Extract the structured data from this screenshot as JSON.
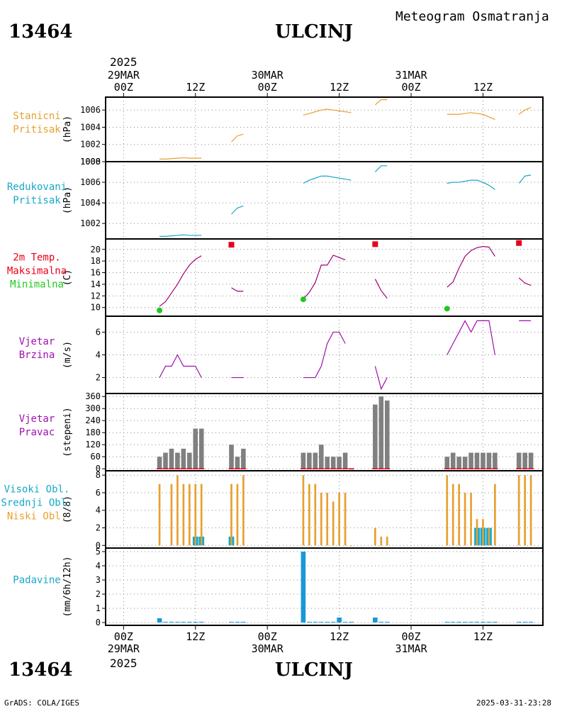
{
  "header": {
    "station_id": "13464",
    "station_name": "ULCINJ",
    "subtitle": "Meteogram Osmatranja"
  },
  "footer": {
    "credit": "GrADS: COLA/IGES",
    "timestamp": "2025-03-31-23:28"
  },
  "time_axis": {
    "top_year": "2025",
    "bottom_year": "2025",
    "ticks": [
      {
        "t": 0,
        "lines": [
          "29MAR",
          "00Z"
        ]
      },
      {
        "t": 12,
        "lines": [
          "12Z"
        ]
      },
      {
        "t": 24,
        "lines": [
          "30MAR",
          "00Z"
        ]
      },
      {
        "t": 36,
        "lines": [
          "12Z"
        ]
      },
      {
        "t": 48,
        "lines": [
          "31MAR",
          "00Z"
        ]
      },
      {
        "t": 60,
        "lines": [
          "12Z"
        ]
      }
    ],
    "range_hours": [
      -3,
      70
    ]
  },
  "colors": {
    "orange": "#e8a030",
    "cyan": "#18a8c8",
    "red": "#e8001a",
    "green": "#20c820",
    "purple": "#a010b0",
    "gray": "#808080",
    "precip": "#1898d8"
  },
  "chart_data": [
    {
      "type": "line",
      "panel": "station_pressure",
      "label_lines": [
        {
          "text": "Stanicni",
          "color": "#e8a030"
        },
        {
          "text": "Pritisak",
          "color": "#e8a030"
        }
      ],
      "ylabel": "(hPa)",
      "ylim": [
        1000,
        1007.5
      ],
      "yticks": [
        1000,
        1002,
        1004,
        1006
      ],
      "series": [
        {
          "color": "#e8a030",
          "segments": [
            [
              [
                6,
                1000.3
              ],
              [
                7,
                1000.3
              ],
              [
                8,
                1000.35
              ],
              [
                9,
                1000.4
              ],
              [
                10,
                1000.45
              ],
              [
                11,
                1000.4
              ],
              [
                12,
                1000.4
              ],
              [
                13,
                1000.4
              ]
            ],
            [
              [
                18,
                1002.3
              ],
              [
                19,
                1003.0
              ],
              [
                20,
                1003.2
              ]
            ],
            [
              [
                30,
                1005.4
              ],
              [
                31,
                1005.6
              ],
              [
                32,
                1005.8
              ],
              [
                33,
                1006.0
              ],
              [
                34,
                1006.1
              ],
              [
                35,
                1006.0
              ],
              [
                36,
                1005.9
              ],
              [
                37,
                1005.8
              ],
              [
                38,
                1005.7
              ]
            ],
            [
              [
                42,
                1006.6
              ],
              [
                43,
                1007.2
              ],
              [
                44,
                1007.2
              ]
            ],
            [
              [
                54,
                1005.5
              ],
              [
                55,
                1005.5
              ],
              [
                56,
                1005.5
              ],
              [
                57,
                1005.6
              ],
              [
                58,
                1005.7
              ],
              [
                59,
                1005.6
              ],
              [
                60,
                1005.5
              ],
              [
                61,
                1005.2
              ],
              [
                62,
                1004.9
              ]
            ],
            [
              [
                66,
                1005.5
              ],
              [
                67,
                1006.0
              ],
              [
                68,
                1006.3
              ]
            ]
          ]
        }
      ]
    },
    {
      "type": "line",
      "panel": "reduced_pressure",
      "label_lines": [
        {
          "text": "Redukovani",
          "color": "#18a8c8"
        },
        {
          "text": "Pritisak",
          "color": "#18a8c8"
        }
      ],
      "ylabel": "(hPa)",
      "ylim": [
        1000.5,
        1008
      ],
      "yticks": [
        1002,
        1004,
        1006,
        1008
      ],
      "series": [
        {
          "color": "#18a8c8",
          "segments": [
            [
              [
                6,
                1000.75
              ],
              [
                7,
                1000.75
              ],
              [
                8,
                1000.8
              ],
              [
                9,
                1000.85
              ],
              [
                10,
                1000.9
              ],
              [
                11,
                1000.85
              ],
              [
                12,
                1000.85
              ],
              [
                13,
                1000.85
              ]
            ],
            [
              [
                18,
                1002.9
              ],
              [
                19,
                1003.5
              ],
              [
                20,
                1003.7
              ]
            ],
            [
              [
                30,
                1005.9
              ],
              [
                31,
                1006.2
              ],
              [
                32,
                1006.4
              ],
              [
                33,
                1006.6
              ],
              [
                34,
                1006.6
              ],
              [
                35,
                1006.5
              ],
              [
                36,
                1006.4
              ],
              [
                37,
                1006.3
              ],
              [
                38,
                1006.2
              ]
            ],
            [
              [
                42,
                1007.0
              ],
              [
                43,
                1007.6
              ],
              [
                44,
                1007.6
              ]
            ],
            [
              [
                54,
                1005.9
              ],
              [
                55,
                1006.0
              ],
              [
                56,
                1006.0
              ],
              [
                57,
                1006.1
              ],
              [
                58,
                1006.2
              ],
              [
                59,
                1006.2
              ],
              [
                60,
                1006.0
              ],
              [
                61,
                1005.7
              ],
              [
                62,
                1005.3
              ]
            ],
            [
              [
                66,
                1005.9
              ],
              [
                67,
                1006.6
              ],
              [
                68,
                1006.7
              ]
            ]
          ]
        }
      ]
    },
    {
      "type": "line",
      "panel": "temperature",
      "label_lines": [
        {
          "text": "2m Temp.",
          "color": "#e8001a"
        },
        {
          "text": "Maksimalna",
          "color": "#e8001a"
        },
        {
          "text": "Minimalna",
          "color": "#20c820"
        }
      ],
      "ylabel": "(C)",
      "ylim": [
        8.5,
        21.8
      ],
      "yticks": [
        10,
        12,
        14,
        16,
        18,
        20
      ],
      "series": [
        {
          "color": "#a0007a",
          "segments": [
            [
              [
                6,
                10.2
              ],
              [
                7,
                11.0
              ],
              [
                8,
                12.5
              ],
              [
                9,
                14.0
              ],
              [
                10,
                15.8
              ],
              [
                11,
                17.3
              ],
              [
                12,
                18.3
              ],
              [
                13,
                18.9
              ]
            ],
            [
              [
                18,
                13.4
              ],
              [
                19,
                12.8
              ],
              [
                20,
                12.8
              ]
            ],
            [
              [
                30,
                11.5
              ],
              [
                31,
                12.6
              ],
              [
                32,
                14.3
              ],
              [
                33,
                17.3
              ],
              [
                34,
                17.3
              ],
              [
                35,
                19.0
              ],
              [
                36,
                18.6
              ],
              [
                37,
                18.2
              ]
            ],
            [
              [
                42,
                14.9
              ],
              [
                43,
                12.9
              ],
              [
                44,
                11.6
              ]
            ],
            [
              [
                54,
                13.5
              ],
              [
                55,
                14.4
              ],
              [
                56,
                16.8
              ],
              [
                57,
                18.8
              ],
              [
                58,
                19.8
              ],
              [
                59,
                20.3
              ],
              [
                60,
                20.5
              ],
              [
                61,
                20.4
              ],
              [
                62,
                18.8
              ]
            ],
            [
              [
                66,
                15.1
              ],
              [
                67,
                14.2
              ],
              [
                68,
                13.8
              ]
            ]
          ]
        }
      ],
      "max_points": [
        [
          18,
          20.8
        ],
        [
          42,
          20.9
        ],
        [
          66,
          21.1
        ]
      ],
      "min_points": [
        [
          6,
          9.5
        ],
        [
          30,
          11.4
        ],
        [
          54,
          9.8
        ]
      ]
    },
    {
      "type": "line",
      "panel": "wind_speed",
      "label_lines": [
        {
          "text": "Vjetar",
          "color": "#a010b0"
        },
        {
          "text": "Brzina",
          "color": "#a010b0"
        }
      ],
      "ylabel": "(m/s)",
      "ylim": [
        0.6,
        7.4
      ],
      "yticks": [
        2,
        4,
        6
      ],
      "series": [
        {
          "color": "#a010b0",
          "segments": [
            [
              [
                6,
                2
              ],
              [
                7,
                3
              ],
              [
                8,
                3
              ],
              [
                9,
                4
              ],
              [
                10,
                3
              ],
              [
                11,
                3
              ],
              [
                12,
                3
              ],
              [
                13,
                2
              ]
            ],
            [
              [
                18,
                2
              ],
              [
                19,
                2
              ],
              [
                20,
                2
              ]
            ],
            [
              [
                30,
                2
              ],
              [
                31,
                2
              ],
              [
                32,
                2
              ],
              [
                33,
                3
              ],
              [
                34,
                5
              ],
              [
                35,
                6
              ],
              [
                36,
                6
              ],
              [
                37,
                5
              ]
            ],
            [
              [
                42,
                3
              ],
              [
                43,
                1
              ],
              [
                44,
                2
              ]
            ],
            [
              [
                54,
                4
              ],
              [
                55,
                5
              ],
              [
                56,
                6
              ],
              [
                57,
                7
              ],
              [
                58,
                6
              ],
              [
                59,
                7
              ],
              [
                60,
                7
              ],
              [
                61,
                7
              ],
              [
                62,
                4
              ]
            ],
            [
              [
                66,
                7
              ],
              [
                67,
                7
              ],
              [
                68,
                7
              ]
            ]
          ]
        }
      ]
    },
    {
      "type": "bar",
      "panel": "wind_direction",
      "label_lines": [
        {
          "text": "Vjetar",
          "color": "#a010b0"
        },
        {
          "text": "Pravac",
          "color": "#a010b0"
        }
      ],
      "ylabel": "(stepeni)",
      "ylim": [
        -10,
        375
      ],
      "yticks": [
        0,
        60,
        120,
        180,
        240,
        300,
        360
      ],
      "color": "#808080",
      "x": [
        6,
        7,
        8,
        9,
        10,
        11,
        12,
        13,
        18,
        19,
        20,
        30,
        31,
        32,
        33,
        34,
        35,
        36,
        37,
        38,
        42,
        43,
        44,
        54,
        55,
        56,
        57,
        58,
        59,
        60,
        61,
        62,
        66,
        67,
        68
      ],
      "values": [
        60,
        80,
        100,
        80,
        100,
        80,
        200,
        200,
        120,
        60,
        100,
        80,
        80,
        80,
        120,
        60,
        60,
        60,
        80,
        0,
        320,
        360,
        340,
        60,
        80,
        60,
        60,
        80,
        80,
        80,
        80,
        80,
        80,
        80,
        80
      ]
    },
    {
      "type": "bar",
      "panel": "cloud_cover",
      "label_lines": [
        {
          "text": "Visoki Obl.",
          "color": "#18a8c8"
        },
        {
          "text": "Srednji Obl.",
          "color": "#18a8c8"
        },
        {
          "text": "Niski Obl.",
          "color": "#e8a030"
        }
      ],
      "ylabel": "(8/8)",
      "ylim": [
        -0.3,
        8.5
      ],
      "yticks": [
        0,
        2,
        4,
        6,
        8
      ],
      "series": [
        {
          "name": "Niski Obl.",
          "color": "#e8a030",
          "offset": 0,
          "x": [
            6,
            8,
            9,
            10,
            11,
            12,
            13,
            18,
            19,
            20,
            30,
            31,
            32,
            33,
            34,
            35,
            36,
            37,
            38,
            42,
            43,
            44,
            54,
            55,
            56,
            57,
            58,
            59,
            60,
            61,
            62,
            66,
            67,
            68
          ],
          "values": [
            7,
            7,
            8,
            7,
            7,
            7,
            7,
            7,
            7,
            8,
            8,
            7,
            7,
            6,
            6,
            5,
            6,
            6,
            0,
            2,
            1,
            1,
            8,
            7,
            7,
            6,
            6,
            3,
            3,
            2,
            7,
            8,
            8,
            8
          ]
        },
        {
          "name": "Visoki Obl.",
          "color": "#18a8c8",
          "offset": -0.3,
          "x": [
            12,
            13,
            18,
            59,
            60,
            61
          ],
          "values": [
            1,
            1,
            1,
            2,
            2,
            2
          ]
        },
        {
          "name": "Srednji Obl.",
          "color": "#18a8c8",
          "offset": 0.3,
          "x": [
            12,
            13,
            18,
            59,
            60,
            61
          ],
          "values": [
            1,
            1,
            1,
            2,
            2,
            2
          ]
        }
      ]
    },
    {
      "type": "bar",
      "panel": "precipitation",
      "label_lines": [
        {
          "text": "Padavine",
          "color": "#18a8c8"
        }
      ],
      "ylabel": "(mm/6h/12h)",
      "ylim": [
        -0.2,
        5.25
      ],
      "yticks": [
        0,
        1,
        2,
        3,
        4,
        5
      ],
      "color": "#1898d8",
      "x": [
        6,
        7,
        8,
        9,
        10,
        11,
        12,
        13,
        18,
        19,
        20,
        30,
        31,
        32,
        33,
        34,
        35,
        36,
        37,
        38,
        42,
        43,
        44,
        54,
        55,
        56,
        57,
        58,
        59,
        60,
        61,
        62,
        66,
        67,
        68
      ],
      "values": [
        0.3,
        0.05,
        0.05,
        0.05,
        0.05,
        0.05,
        0.05,
        0.05,
        0.05,
        0.05,
        0.05,
        5.0,
        0.05,
        0.05,
        0.05,
        0.05,
        0.05,
        0.35,
        0.05,
        0.05,
        0.35,
        0.05,
        0.05,
        0.05,
        0.05,
        0.05,
        0.05,
        0.05,
        0.05,
        0.05,
        0.05,
        0.05,
        0.05,
        0.05,
        0.05
      ]
    }
  ]
}
